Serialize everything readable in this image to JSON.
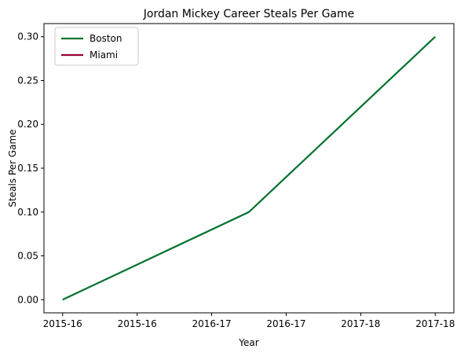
{
  "chart_data": {
    "type": "line",
    "title": "Jordan Mickey Career Steals Per Game",
    "xlabel": "Year",
    "ylabel": "Steals Per Game",
    "x_tick_labels": [
      "2015-16",
      "2015-16",
      "2016-17",
      "2016-17",
      "2017-18",
      "2017-18"
    ],
    "x_ticks": [
      0,
      0.4,
      0.8,
      1.2,
      1.6,
      2.0
    ],
    "xlim": [
      -0.1,
      2.1
    ],
    "yticks": [
      0.0,
      0.05,
      0.1,
      0.15,
      0.2,
      0.25,
      0.3
    ],
    "ytick_labels": [
      "0.00",
      "0.05",
      "0.10",
      "0.15",
      "0.20",
      "0.25",
      "0.30"
    ],
    "ylim": [
      -0.015,
      0.315
    ],
    "grid": false,
    "legend_position": "top-left",
    "series": [
      {
        "name": "Boston",
        "color": "#00712e",
        "x": [
          0,
          1,
          2
        ],
        "y": [
          0.0,
          0.1,
          0.3
        ]
      },
      {
        "name": "Miami",
        "color": "#980036",
        "x": [],
        "y": []
      }
    ]
  }
}
